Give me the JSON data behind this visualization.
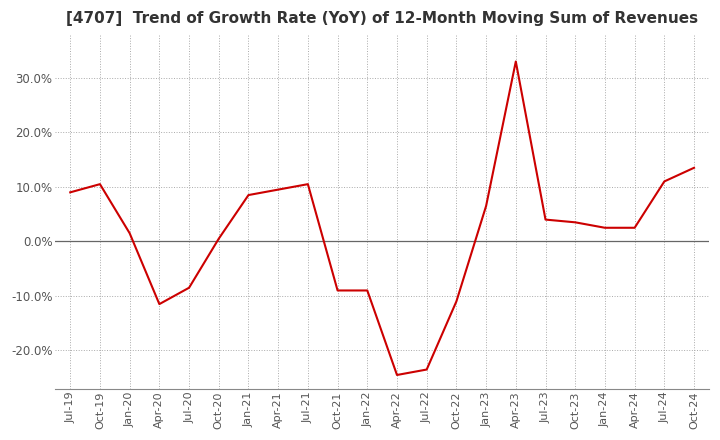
{
  "title": "[4707]  Trend of Growth Rate (YoY) of 12-Month Moving Sum of Revenues",
  "title_fontsize": 11,
  "line_color": "#cc0000",
  "background_color": "#ffffff",
  "grid_color": "#aaaaaa",
  "zero_line_color": "#666666",
  "ylim": [
    -27,
    38
  ],
  "yticks": [
    -20,
    -10,
    0,
    10,
    20,
    30
  ],
  "x_labels": [
    "Jul-19",
    "Oct-19",
    "Jan-20",
    "Apr-20",
    "Jul-20",
    "Oct-20",
    "Jan-21",
    "Apr-21",
    "Jul-21",
    "Oct-21",
    "Jan-22",
    "Apr-22",
    "Jul-22",
    "Oct-22",
    "Jan-23",
    "Apr-23",
    "Jul-23",
    "Oct-23",
    "Jan-24",
    "Apr-24",
    "Jul-24",
    "Oct-24"
  ],
  "values": [
    9.0,
    10.5,
    1.5,
    -11.5,
    -8.5,
    0.5,
    8.5,
    9.5,
    10.5,
    -9.0,
    -9.0,
    -24.5,
    -23.5,
    -11.0,
    6.5,
    33.0,
    4.0,
    3.5,
    2.5,
    2.5,
    11.0,
    13.5
  ]
}
